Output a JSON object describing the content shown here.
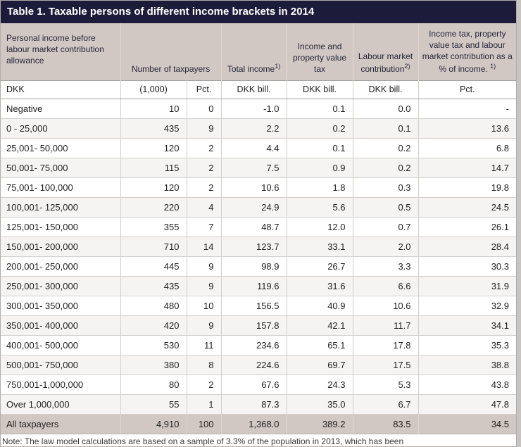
{
  "title_bar": {
    "title": "Table 1. Taxable persons of different income brackets in 2014"
  },
  "colors": {
    "title_bar_bg": "#1c1c3a",
    "title_text": "#ffffff",
    "header_band_bg": "#d1c8c4",
    "header_text": "#262639",
    "alt_row_bg": "#f5f4f3",
    "total_row_bg": "#d1c8c4",
    "grid_border": "#d2d0cf",
    "page_bg": "#c8c4c2"
  },
  "chart_data": {
    "type": "table",
    "title": "Table 1. Taxable persons of different income brackets in 2014",
    "headers": {
      "bracket": "Personal income before labour market contribution allowance",
      "taxpayers": "Number of taxpayers",
      "total_income": {
        "label": "Total income",
        "sup": "1)"
      },
      "income_property_tax": "Income and property value tax",
      "labour_market": {
        "label": "Labour market contribution",
        "sup": "2)"
      },
      "pct_of_income": {
        "label": "Income tax, property value tax and labour market contribution as a % of income.",
        "sup": "1)"
      }
    },
    "units_row": [
      "DKK",
      "(1,000)",
      "Pct.",
      "DKK bill.",
      "DKK bill.",
      "DKK bill.",
      "Pct."
    ],
    "rows": [
      [
        "Negative",
        "10",
        "0",
        "-1.0",
        "0.1",
        "0.0",
        "-"
      ],
      [
        "0 - 25,000",
        "435",
        "9",
        "2.2",
        "0.2",
        "0.1",
        "13.6"
      ],
      [
        "25,001- 50,000",
        "120",
        "2",
        "4.4",
        "0.1",
        "0.2",
        "6.8"
      ],
      [
        "50,001- 75,000",
        "115",
        "2",
        "7.5",
        "0.9",
        "0.2",
        "14.7"
      ],
      [
        "75,001- 100,000",
        "120",
        "2",
        "10.6",
        "1.8",
        "0.3",
        "19.8"
      ],
      [
        "100,001- 125,000",
        "220",
        "4",
        "24.9",
        "5.6",
        "0.5",
        "24.5"
      ],
      [
        "125,001- 150,000",
        "355",
        "7",
        "48.7",
        "12.0",
        "0.7",
        "26.1"
      ],
      [
        "150,001- 200,000",
        "710",
        "14",
        "123.7",
        "33.1",
        "2.0",
        "28.4"
      ],
      [
        "200,001- 250,000",
        "445",
        "9",
        "98.9",
        "26.7",
        "3.3",
        "30.3"
      ],
      [
        "250,001- 300,000",
        "435",
        "9",
        "119.6",
        "31.6",
        "6.6",
        "31.9"
      ],
      [
        "300,001- 350,000",
        "480",
        "10",
        "156.5",
        "40.9",
        "10.6",
        "32.9"
      ],
      [
        "350,001- 400,000",
        "420",
        "9",
        "157.8",
        "42.1",
        "11.7",
        "34.1"
      ],
      [
        "400,001- 500,000",
        "530",
        "11",
        "234.6",
        "65.1",
        "17.8",
        "35.3"
      ],
      [
        "500,001- 750,000",
        "380",
        "8",
        "224.6",
        "69.7",
        "17.5",
        "38.8"
      ],
      [
        "750,001-1,000,000",
        "80",
        "2",
        "67.6",
        "24.3",
        "5.3",
        "43.8"
      ],
      [
        "Over 1,000,000",
        "55",
        "1",
        "87.3",
        "35.0",
        "6.7",
        "47.8"
      ]
    ],
    "total_row": [
      "All taxpayers",
      "4,910",
      "100",
      "1,368.0",
      "389.2",
      "83.5",
      "34.5"
    ]
  },
  "note": "Note: The law model calculations are based on a sample of 3.3% of the population in 2013, which has been"
}
